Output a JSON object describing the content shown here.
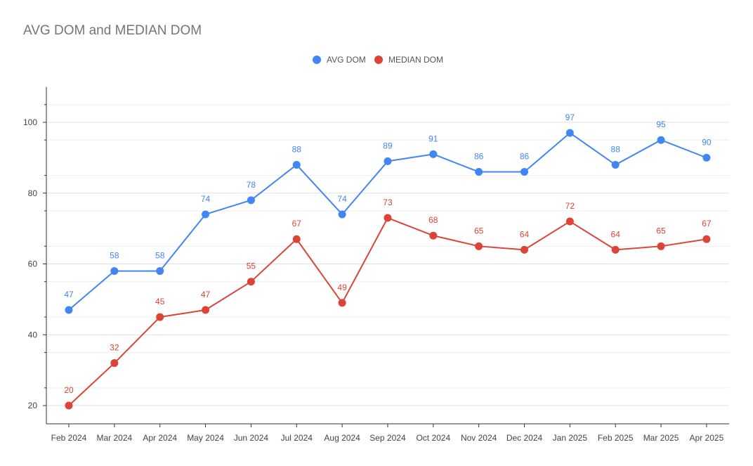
{
  "colors": {
    "avg": "#4285f4",
    "median": "#db4437",
    "grid": "#e0e0e0",
    "axis": "#333333",
    "title": "#757575",
    "tick": "#444444"
  },
  "chart_data": {
    "type": "line",
    "title": "AVG DOM and MEDIAN DOM",
    "xlabel": "",
    "ylabel": "",
    "categories": [
      "Feb 2024",
      "Mar 2024",
      "Apr 2024",
      "May 2024",
      "Jun 2024",
      "Jul 2024",
      "Aug 2024",
      "Sep 2024",
      "Oct 2024",
      "Nov 2024",
      "Dec 2024",
      "Jan 2025",
      "Feb 2025",
      "Mar 2025",
      "Apr 2025"
    ],
    "series": [
      {
        "name": "AVG DOM",
        "color": "#4285f4",
        "values": [
          47,
          58,
          58,
          74,
          78,
          88,
          74,
          89,
          91,
          86,
          86,
          97,
          88,
          95,
          90
        ]
      },
      {
        "name": "MEDIAN DOM",
        "color": "#db4437",
        "values": [
          20,
          32,
          45,
          47,
          55,
          67,
          49,
          73,
          68,
          65,
          64,
          72,
          64,
          65,
          67
        ]
      }
    ],
    "ylim": [
      15,
      110
    ],
    "yticks": [
      20,
      40,
      60,
      80,
      100
    ],
    "grid": true,
    "data_labels": true,
    "legend_position": "top"
  }
}
